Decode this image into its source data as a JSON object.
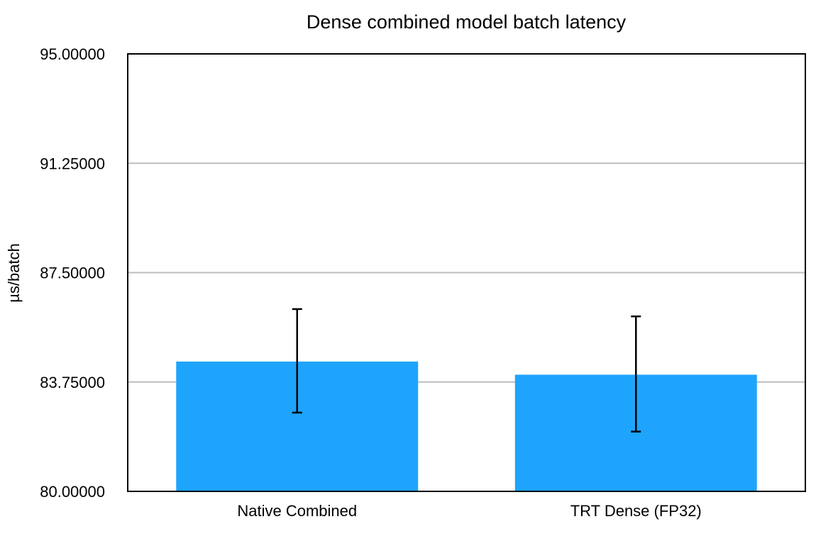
{
  "chart_data": {
    "type": "bar",
    "title": "Dense combined model batch latency",
    "xlabel": "",
    "ylabel": "µs/batch",
    "categories": [
      "Native Combined",
      "TRT Dense (FP32)"
    ],
    "values": [
      84.45,
      84.0
    ],
    "error_low": [
      82.7,
      82.05
    ],
    "error_high": [
      86.25,
      86.0
    ],
    "ylim": [
      80.0,
      95.0
    ],
    "yticks": [
      80.0,
      83.75,
      87.5,
      91.25,
      95.0
    ],
    "ytick_labels": [
      "80.00000",
      "83.75000",
      "87.50000",
      "91.25000",
      "95.00000"
    ],
    "grid": true,
    "colors": {
      "bar": "#1ea4fc",
      "grid": "#bdbdbd",
      "axis": "#000000",
      "error": "#000000"
    }
  }
}
